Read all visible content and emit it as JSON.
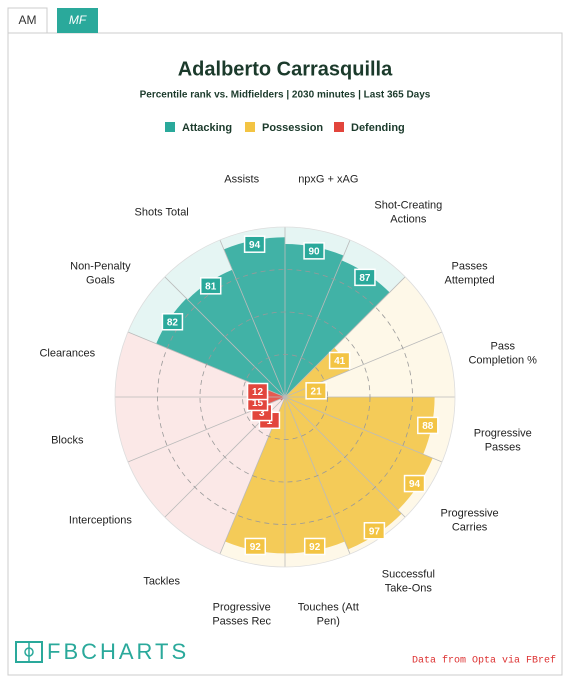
{
  "tabs": [
    "AM",
    "MF"
  ],
  "chart_data": {
    "type": "pizza",
    "title": "Adalberto Carrasquilla",
    "subtitle": "Percentile rank vs. Midfielders | 2030 minutes | Last 365 Days",
    "ylim": [
      0,
      100
    ],
    "series": [
      {
        "name": "Attacking",
        "color": "#2aa99b",
        "categories": [
          "Non-Penalty Goals",
          "Shots Total",
          "Assists",
          "npxG + xAG",
          "Shot-Creating Actions"
        ],
        "values": [
          82,
          81,
          94,
          90,
          87
        ]
      },
      {
        "name": "Possession",
        "color": "#f3c443",
        "categories": [
          "Passes Attempted",
          "Pass Completion %",
          "Progressive Passes",
          "Progressive Carries",
          "Successful Take-Ons",
          "Touches (Att Pen)",
          "Progressive Passes Rec"
        ],
        "values": [
          41,
          21,
          88,
          94,
          97,
          92,
          92
        ]
      },
      {
        "name": "Defending",
        "color": "#e2453c",
        "categories": [
          "Tackles",
          "Interceptions",
          "Blocks",
          "Clearances"
        ],
        "values": [
          1,
          3,
          15,
          12
        ]
      }
    ],
    "brand": "FBCHARTS",
    "source": "Data from Opta via FBref"
  }
}
